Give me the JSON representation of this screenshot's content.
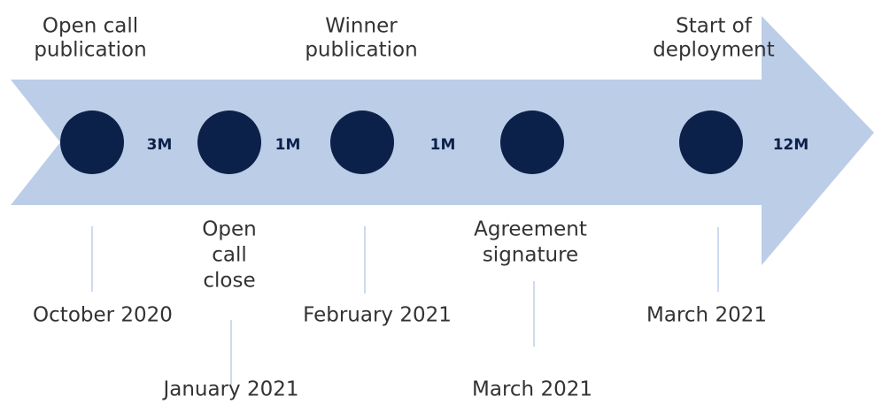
{
  "milestones": [
    {
      "label": [
        "Open call",
        "publication"
      ],
      "date": "October 2020",
      "duration": "3M"
    },
    {
      "label": [
        "Open",
        "call",
        "close"
      ],
      "date": "January 2021",
      "duration": "1M"
    },
    {
      "label": [
        "Winner",
        "publication"
      ],
      "date": "February 2021",
      "duration": "1M"
    },
    {
      "label": [
        "Agreement",
        "signature"
      ],
      "date": "March 2021"
    },
    {
      "label": [
        "Start of",
        "deployment"
      ],
      "date": "March 2021",
      "duration": "12M"
    }
  ]
}
